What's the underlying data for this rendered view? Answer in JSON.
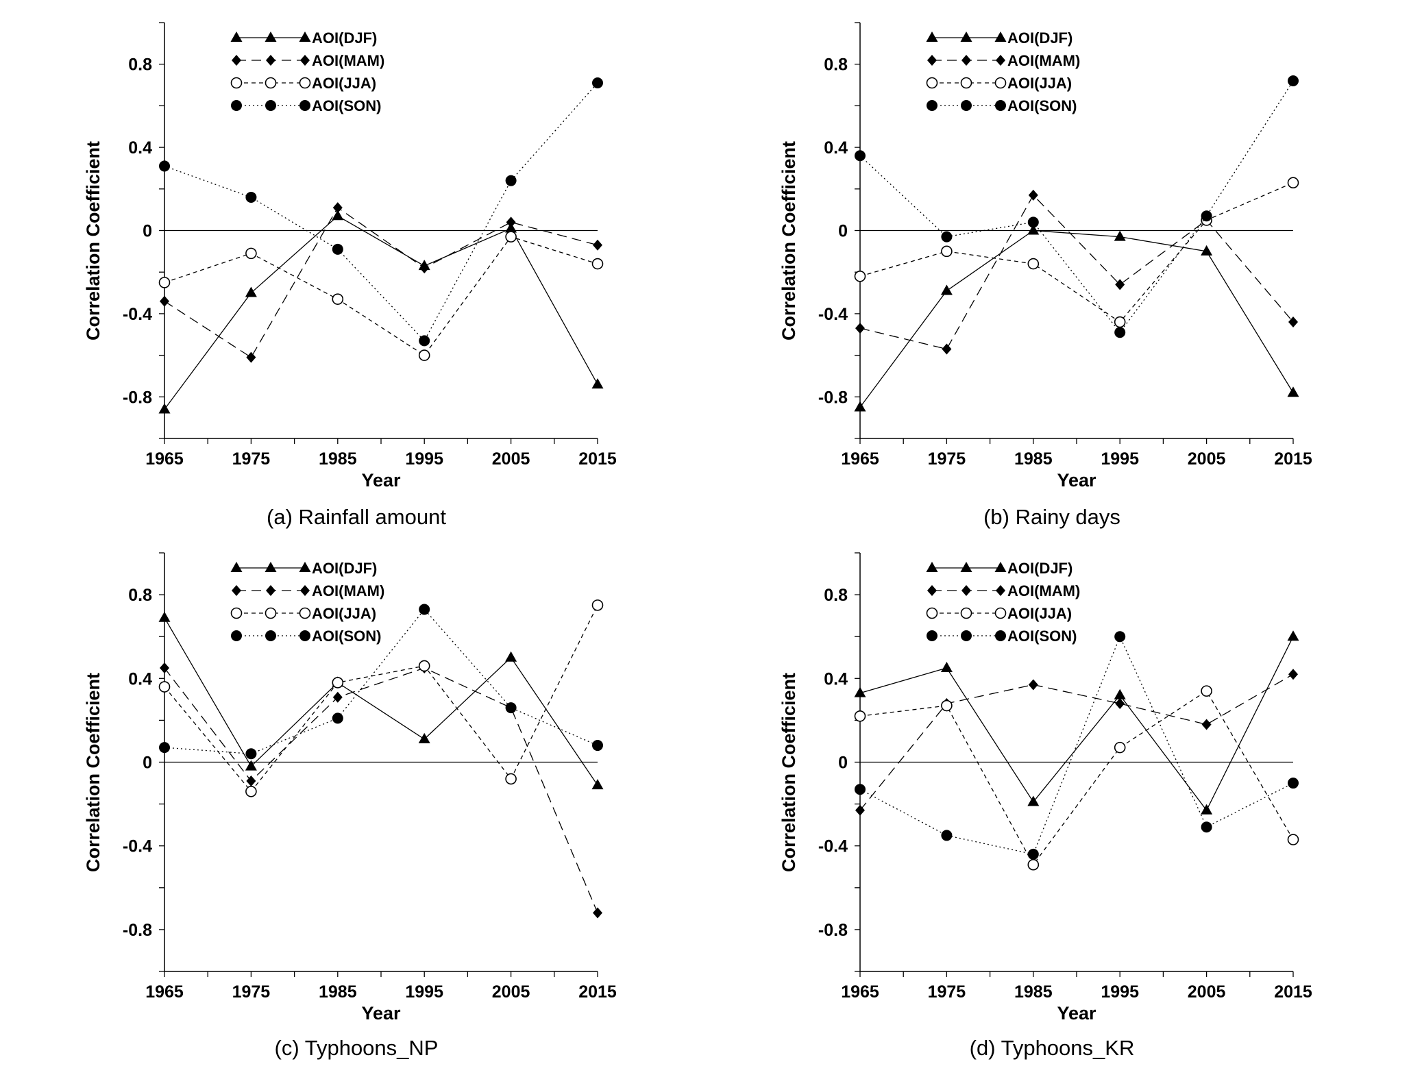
{
  "chart_data": [
    {
      "type": "line",
      "caption": "(a) Rainfall amount",
      "xlabel": "Year",
      "ylabel": "Correlation Coefficient",
      "x": [
        1965,
        1975,
        1985,
        1995,
        2005,
        2015
      ],
      "xticks": [
        "1965",
        "1975",
        "1985",
        "1995",
        "2005",
        "2015"
      ],
      "ylim": [
        -1.0,
        1.0
      ],
      "yticks": [
        "0.8",
        "0.4",
        "0",
        "-0.4",
        "-0.8"
      ],
      "legend_position": "top-left",
      "series": [
        {
          "name": "AOI(DJF)",
          "values": [
            -0.86,
            -0.3,
            0.07,
            -0.17,
            0.01,
            -0.74
          ]
        },
        {
          "name": "AOI(MAM)",
          "values": [
            -0.34,
            -0.61,
            0.11,
            -0.18,
            0.04,
            -0.07
          ]
        },
        {
          "name": "AOI(JJA)",
          "values": [
            -0.25,
            -0.11,
            -0.33,
            -0.6,
            -0.03,
            -0.16
          ]
        },
        {
          "name": "AOI(SON)",
          "values": [
            0.31,
            0.16,
            -0.09,
            -0.53,
            0.24,
            0.71
          ]
        }
      ]
    },
    {
      "type": "line",
      "caption": "(b) Rainy days",
      "xlabel": "Year",
      "ylabel": "Correlation Coefficient",
      "x": [
        1965,
        1975,
        1985,
        1995,
        2005,
        2015
      ],
      "xticks": [
        "1965",
        "1975",
        "1985",
        "1995",
        "2005",
        "2015"
      ],
      "ylim": [
        -1.0,
        1.0
      ],
      "yticks": [
        "0.8",
        "0.4",
        "0",
        "-0.4",
        "-0.8"
      ],
      "legend_position": "top-left",
      "series": [
        {
          "name": "AOI(DJF)",
          "values": [
            -0.85,
            -0.29,
            0.0,
            -0.03,
            -0.1,
            -0.78
          ]
        },
        {
          "name": "AOI(MAM)",
          "values": [
            -0.47,
            -0.57,
            0.17,
            -0.26,
            0.05,
            -0.44
          ]
        },
        {
          "name": "AOI(JJA)",
          "values": [
            -0.22,
            -0.1,
            -0.16,
            -0.44,
            0.05,
            0.23
          ]
        },
        {
          "name": "AOI(SON)",
          "values": [
            0.36,
            -0.03,
            0.04,
            -0.49,
            0.07,
            0.72
          ]
        }
      ]
    },
    {
      "type": "line",
      "caption": "(c) Typhoons_NP",
      "xlabel": "Year",
      "ylabel": "Correlation Coefficient",
      "x": [
        1965,
        1975,
        1985,
        1995,
        2005,
        2015
      ],
      "xticks": [
        "1965",
        "1975",
        "1985",
        "1995",
        "2005",
        "2015"
      ],
      "ylim": [
        -1.0,
        1.0
      ],
      "yticks": [
        "0.8",
        "0.4",
        "0",
        "-0.4",
        "-0.8"
      ],
      "legend_position": "top-left",
      "series": [
        {
          "name": "AOI(DJF)",
          "values": [
            0.69,
            -0.02,
            0.38,
            0.11,
            0.5,
            -0.11
          ]
        },
        {
          "name": "AOI(MAM)",
          "values": [
            0.45,
            -0.09,
            0.31,
            0.45,
            0.26,
            -0.72
          ]
        },
        {
          "name": "AOI(JJA)",
          "values": [
            0.36,
            -0.14,
            0.38,
            0.46,
            -0.08,
            0.75
          ]
        },
        {
          "name": "AOI(SON)",
          "values": [
            0.07,
            0.04,
            0.21,
            0.73,
            0.26,
            0.08
          ]
        }
      ]
    },
    {
      "type": "line",
      "caption": "(d) Typhoons_KR",
      "xlabel": "Year",
      "ylabel": "Correlation Coefficient",
      "x": [
        1965,
        1975,
        1985,
        1995,
        2005,
        2015
      ],
      "xticks": [
        "1965",
        "1975",
        "1985",
        "1995",
        "2005",
        "2015"
      ],
      "ylim": [
        -1.0,
        1.0
      ],
      "yticks": [
        "0.8",
        "0.4",
        "0",
        "-0.4",
        "-0.8"
      ],
      "legend_position": "top-left",
      "series": [
        {
          "name": "AOI(DJF)",
          "values": [
            0.33,
            0.45,
            -0.19,
            0.32,
            -0.23,
            0.6
          ]
        },
        {
          "name": "AOI(MAM)",
          "values": [
            -0.23,
            0.28,
            0.37,
            0.28,
            0.18,
            0.42
          ]
        },
        {
          "name": "AOI(JJA)",
          "values": [
            0.22,
            0.27,
            -0.49,
            0.07,
            0.34,
            -0.37
          ]
        },
        {
          "name": "AOI(SON)",
          "values": [
            -0.13,
            -0.35,
            -0.44,
            0.6,
            -0.31,
            -0.1
          ]
        }
      ]
    }
  ]
}
